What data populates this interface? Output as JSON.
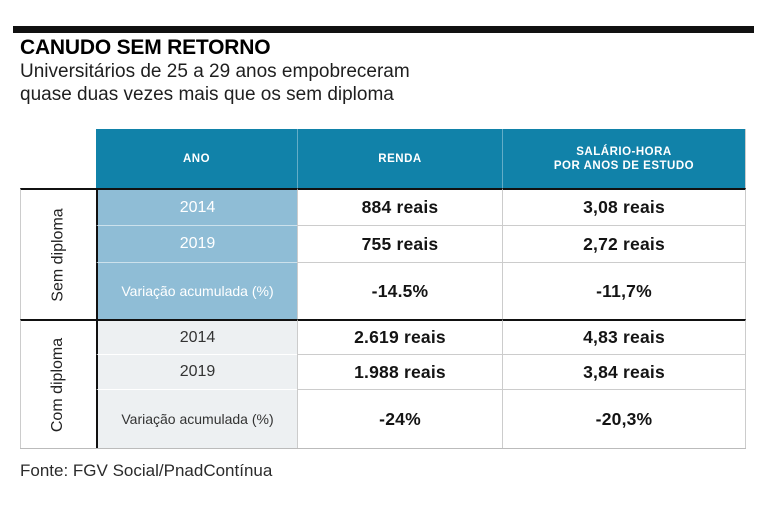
{
  "page": {
    "title": "CANUDO SEM RETORNO",
    "subtitle_line1": "Universitários de 25 a 29 anos empobreceram",
    "subtitle_line2": "quase duas vezes mais que os sem diploma",
    "source": "Fonte: FGV Social/PnadContínua"
  },
  "colors": {
    "header_bg": "#1182A9",
    "ano_highlight_bg": "#8FBDD6",
    "ano_neutral_bg": "#EDF0F2",
    "rule_black": "#111111",
    "grid_line": "#cccccc"
  },
  "table": {
    "columns": {
      "ano": "ANO",
      "renda": "RENDA",
      "salario_line1": "SALÁRIO-HORA",
      "salario_line2": "POR ANOS DE ESTUDO"
    },
    "groups": [
      {
        "label": "Sem diploma",
        "rows": [
          {
            "ano": "2014",
            "renda": "884 reais",
            "salario": "3,08 reais"
          },
          {
            "ano": "2019",
            "renda": "755 reais",
            "salario": "2,72 reais"
          },
          {
            "ano": "Variação acumulada (%)",
            "renda": "-14.5%",
            "salario": "-11,7%"
          }
        ]
      },
      {
        "label": "Com diploma",
        "rows": [
          {
            "ano": "2014",
            "renda": "2.619 reais",
            "salario": "4,83 reais"
          },
          {
            "ano": "2019",
            "renda": "1.988 reais",
            "salario": "3,84 reais"
          },
          {
            "ano": "Variação acumulada (%)",
            "renda": "-24%",
            "salario": "-20,3%"
          }
        ]
      }
    ]
  },
  "chart_data": {
    "type": "table",
    "title": "CANUDO SEM RETORNO",
    "subtitle": "Universitários de 25 a 29 anos empobreceram quase duas vezes mais que os sem diploma",
    "columns": [
      "ANO",
      "RENDA",
      "SALÁRIO-HORA POR ANOS DE ESTUDO"
    ],
    "row_groups": [
      {
        "group": "Sem diploma",
        "rows": [
          [
            "2014",
            "884 reais",
            "3,08 reais"
          ],
          [
            "2019",
            "755 reais",
            "2,72 reais"
          ],
          [
            "Variação acumulada (%)",
            "-14.5%",
            "-11,7%"
          ]
        ]
      },
      {
        "group": "Com diploma",
        "rows": [
          [
            "2014",
            "2.619 reais",
            "4,83 reais"
          ],
          [
            "2019",
            "1.988 reais",
            "3,84 reais"
          ],
          [
            "Variação acumulada (%)",
            "-24%",
            "-20,3%"
          ]
        ]
      }
    ],
    "source": "Fonte: FGV Social/PnadContínua",
    "numeric_summary": {
      "sem_diploma": {
        "renda_2014": 884,
        "renda_2019": 755,
        "renda_var_pct": -14.5,
        "salario_hora_2014": 3.08,
        "salario_hora_2019": 2.72,
        "salario_var_pct": -11.7
      },
      "com_diploma": {
        "renda_2014": 2619,
        "renda_2019": 1988,
        "renda_var_pct": -24,
        "salario_hora_2014": 4.83,
        "salario_hora_2019": 3.84,
        "salario_var_pct": -20.3
      }
    }
  }
}
